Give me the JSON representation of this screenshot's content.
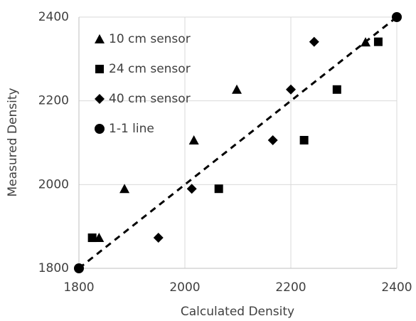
{
  "chart_data": {
    "type": "scatter",
    "x_label": "Calculated Density",
    "y_label": "Measured Density",
    "xlim": [
      1800,
      2400
    ],
    "ylim": [
      1800,
      2400
    ],
    "xticks": [
      1800,
      2000,
      2200,
      2400
    ],
    "yticks": [
      1800,
      2000,
      2200,
      2400
    ],
    "grid": true,
    "legend": "upper left",
    "series": [
      {
        "name": "10 cm sensor",
        "color": "#000000",
        "marker": "triangle",
        "x": [
          1838,
          1886,
          2017,
          2098,
          2341
        ],
        "values": [
          1873,
          1990,
          2106,
          2227,
          2340
        ]
      },
      {
        "name": "24 cm sensor",
        "color": "#000000",
        "marker": "square",
        "x": [
          1825,
          2064,
          2225,
          2287,
          2365
        ],
        "values": [
          1873,
          1990,
          2106,
          2227,
          2341
        ]
      },
      {
        "name": "40 cm sensor",
        "color": "#000000",
        "marker": "diamond",
        "x": [
          1950,
          2013,
          2166,
          2200,
          2244
        ],
        "values": [
          1873,
          1990,
          2106,
          2227,
          2341
        ]
      },
      {
        "name": "1-1 line",
        "color": "#000000",
        "marker": "circle",
        "line_style": "dashed",
        "x": [
          1800,
          2400
        ],
        "values": [
          1800,
          2400
        ]
      }
    ]
  }
}
